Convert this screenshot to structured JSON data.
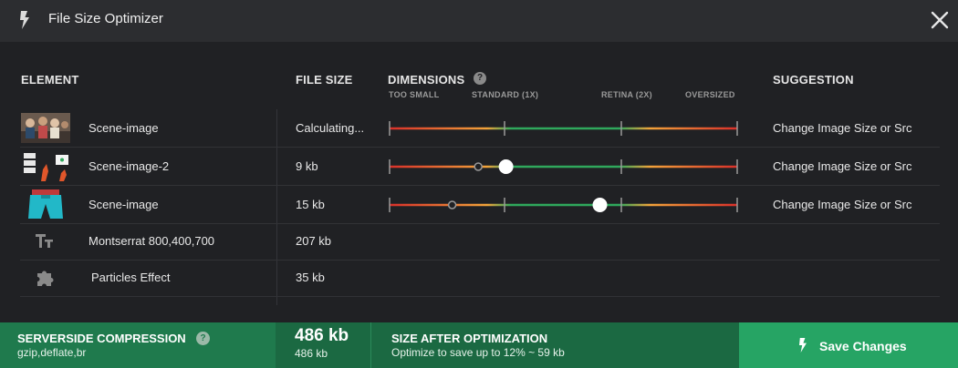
{
  "window": {
    "title": "File Size Optimizer",
    "title_icon": "lightning-icon",
    "close_icon": "close-icon"
  },
  "columns": {
    "element": "ELEMENT",
    "file_size": "FILE SIZE",
    "dimensions": "DIMENSIONS",
    "dimensions_help": "?",
    "suggestion": "SUGGESTION"
  },
  "scale": {
    "too_small": "TOO SMALL",
    "standard": "STANDARD (1X)",
    "retina": "RETINA (2X)",
    "oversized": "OVERSIZED"
  },
  "rows": [
    {
      "name": "Scene-image",
      "size": "Calculating...",
      "suggestion": "Change Image Size or Src",
      "icon": "image-thumbnail"
    },
    {
      "name": "Scene-image-2",
      "size": "9 kb",
      "suggestion": "Change Image Size or Src",
      "icon": "image-thumbnail",
      "slider": {
        "current": 0.255,
        "target": 0.335
      }
    },
    {
      "name": "Scene-image",
      "size": "15 kb",
      "suggestion": "Change Image Size or Src",
      "icon": "image-thumbnail",
      "slider": {
        "current": 0.18,
        "target": 0.605
      }
    },
    {
      "name": "Montserrat 800,400,700",
      "size": "207 kb",
      "icon": "font-icon"
    },
    {
      "name": "Particles Effect",
      "size": "35 kb",
      "icon": "puzzle-icon"
    }
  ],
  "footer": {
    "compression_title": "SERVERSIDE COMPRESSION",
    "compression_help": "?",
    "compression_methods": "gzip,deflate,br",
    "total_big": "486 kb",
    "total_small": "486 kb",
    "optimization_title": "SIZE AFTER OPTIMIZATION",
    "optimization_subtitle": "Optimize to save up to 12% ~ 59 kb",
    "save_label": "Save Changes",
    "save_icon": "lightning-icon"
  },
  "colors": {
    "accent_green": "#26a464",
    "footer_green": "#1f7a4d",
    "slider_red": "#d9302a",
    "slider_orange": "#f2a33a",
    "slider_green": "#2fa85c"
  }
}
